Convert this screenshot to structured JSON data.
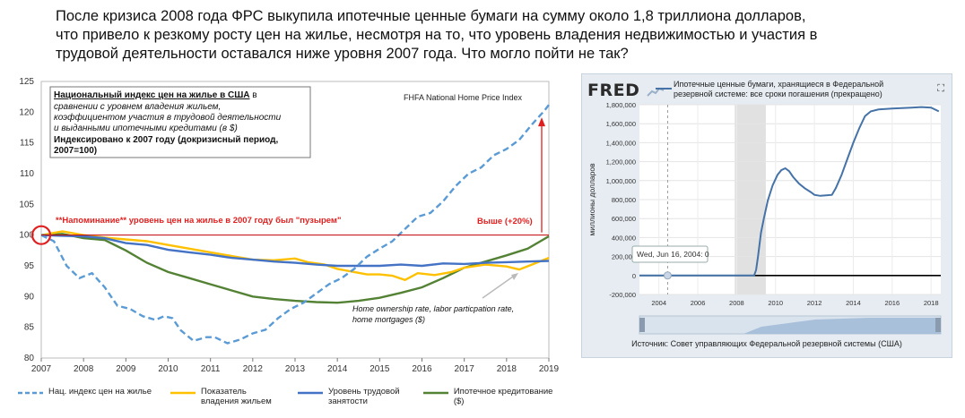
{
  "headline": {
    "line1": "После кризиса 2008 года ФРС выкупила ипотечные ценные бумаги на сумму около 1,8 триллиона долларов,",
    "line2": "что привело к резкому росту цен на жилье, несмотря на то, что уровень владения недвижимостью и участия в",
    "line3": "трудовой деятельности оставался ниже уровня 2007 года. Что могло пойти не так?"
  },
  "left_chart": {
    "box_title": "Национальный индекс цен на жилье в США",
    "box_title_suffix": " в",
    "box_line2": "сравнении с уровнем владения жильем,",
    "box_line3": "коэффициентом участия в трудовой деятельности",
    "box_line4": "и выданными ипотечными кредитами (в $)",
    "box_line5": "Индексировано к 2007 году (докризисный период,",
    "box_line6": "2007=100)",
    "source_label": "FHFA National Home Price Index",
    "reminder": "**Напоминание** уровень цен на жилье в 2007 году был \"пузырем\"",
    "higher_label": "Выше (+20%)",
    "annotation_line1": "Home ownership rate, labor particpation rate,",
    "annotation_line2": "home mortgages ($)",
    "colors": {
      "price": "#5b9bd5",
      "ownership": "#ffc000",
      "labor": "#4472c4",
      "mortgage": "#548235",
      "accent": "#e02020"
    }
  },
  "legend": [
    {
      "label1": "Нац. индекс цен на жилье",
      "label2": ""
    },
    {
      "label1": "Показатель",
      "label2": "владения жильем"
    },
    {
      "label1": "Уровень трудовой",
      "label2": "занятости"
    },
    {
      "label1": "Ипотечное кредитование ($)",
      "label2": ""
    }
  ],
  "fred": {
    "logo": "FRED",
    "series_title_line1": "Ипотечные ценные бумаги, хранящиеся в Федеральной",
    "series_title_line2": "резервной системе: все сроки погашения (прекращено)",
    "expand_icon": "⛶",
    "y_axis_label": "миллионы долларов",
    "tooltip": "Wed, Jun 16, 2004: 0",
    "source": "Источник: Совет управляющих Федеральной резервной системы (США)",
    "line_color": "#4572a7",
    "recession_color": "#e1e1e1"
  },
  "chart_data": [
    {
      "type": "line",
      "x_ticks": [
        "2007",
        "2008",
        "2009",
        "2010",
        "2011",
        "2012",
        "2013",
        "2014",
        "2015",
        "2016",
        "2017",
        "2018",
        "2019"
      ],
      "ylim": [
        80,
        125
      ],
      "y_ticks": [
        "80",
        "85",
        "90",
        "95",
        "100",
        "105",
        "110",
        "115",
        "120",
        "125"
      ],
      "reference_line": 100,
      "series": [
        {
          "name": "Нац. индекс цен на жилье",
          "style": "dashed",
          "points": [
            [
              2007,
              100
            ],
            [
              2007.3,
              99
            ],
            [
              2007.6,
              95
            ],
            [
              2007.9,
              93
            ],
            [
              2008.2,
              93.8
            ],
            [
              2008.5,
              91.5
            ],
            [
              2008.8,
              88.5
            ],
            [
              2009.1,
              88
            ],
            [
              2009.4,
              86.8
            ],
            [
              2009.7,
              86.2
            ],
            [
              2009.9,
              86.8
            ],
            [
              2010.1,
              86.5
            ],
            [
              2010.3,
              84.5
            ],
            [
              2010.6,
              82.8
            ],
            [
              2010.9,
              83.4
            ],
            [
              2011.1,
              83.4
            ],
            [
              2011.4,
              82.4
            ],
            [
              2011.7,
              83
            ],
            [
              2012.0,
              84
            ],
            [
              2012.3,
              84.6
            ],
            [
              2012.6,
              86.5
            ],
            [
              2012.9,
              88
            ],
            [
              2013.2,
              89
            ],
            [
              2013.5,
              90.5
            ],
            [
              2013.8,
              92
            ],
            [
              2014.1,
              93
            ],
            [
              2014.4,
              94.5
            ],
            [
              2014.7,
              96.5
            ],
            [
              2015.0,
              97.8
            ],
            [
              2015.3,
              99
            ],
            [
              2015.6,
              101
            ],
            [
              2015.9,
              103
            ],
            [
              2016.2,
              103.6
            ],
            [
              2016.5,
              105.5
            ],
            [
              2016.8,
              108
            ],
            [
              2017.1,
              110
            ],
            [
              2017.4,
              111
            ],
            [
              2017.7,
              113
            ],
            [
              2018.0,
              114
            ],
            [
              2018.3,
              115.5
            ],
            [
              2018.6,
              118
            ],
            [
              2018.9,
              120.3
            ],
            [
              2019.0,
              121.2
            ]
          ]
        },
        {
          "name": "Показатель владения жильем",
          "style": "solid",
          "points": [
            [
              2007,
              100
            ],
            [
              2007.5,
              100.6
            ],
            [
              2008,
              100
            ],
            [
              2008.5,
              99.6
            ],
            [
              2009,
              99.3
            ],
            [
              2009.5,
              99
            ],
            [
              2010,
              98.4
            ],
            [
              2010.5,
              97.8
            ],
            [
              2011,
              97.2
            ],
            [
              2011.5,
              96.6
            ],
            [
              2012,
              96
            ],
            [
              2012.5,
              95.9
            ],
            [
              2013,
              96.2
            ],
            [
              2013.3,
              95.6
            ],
            [
              2013.7,
              95.2
            ],
            [
              2014,
              94.5
            ],
            [
              2014.4,
              94
            ],
            [
              2014.7,
              93.6
            ],
            [
              2015.0,
              93.6
            ],
            [
              2015.3,
              93.4
            ],
            [
              2015.6,
              92.7
            ],
            [
              2015.9,
              93.8
            ],
            [
              2016.3,
              93.5
            ],
            [
              2016.7,
              94
            ],
            [
              2017,
              94.7
            ],
            [
              2017.5,
              95.2
            ],
            [
              2018,
              94.9
            ],
            [
              2018.3,
              94.4
            ],
            [
              2018.6,
              95.2
            ],
            [
              2019,
              96.3
            ]
          ]
        },
        {
          "name": "Уровень трудовой занятости",
          "style": "solid",
          "points": [
            [
              2007,
              100
            ],
            [
              2007.5,
              99.9
            ],
            [
              2008,
              99.8
            ],
            [
              2008.5,
              99.5
            ],
            [
              2009,
              98.7
            ],
            [
              2009.5,
              98.4
            ],
            [
              2010,
              97.6
            ],
            [
              2010.5,
              97.2
            ],
            [
              2011,
              96.8
            ],
            [
              2011.5,
              96.3
            ],
            [
              2012,
              96
            ],
            [
              2012.5,
              95.7
            ],
            [
              2013,
              95.5
            ],
            [
              2013.5,
              95.2
            ],
            [
              2014,
              95
            ],
            [
              2014.5,
              95
            ],
            [
              2015,
              95
            ],
            [
              2015.5,
              95.2
            ],
            [
              2016,
              95
            ],
            [
              2016.5,
              95.4
            ],
            [
              2017,
              95.3
            ],
            [
              2017.5,
              95.5
            ],
            [
              2018,
              95.6
            ],
            [
              2018.5,
              95.7
            ],
            [
              2019,
              95.8
            ]
          ]
        },
        {
          "name": "Ипотечное кредитование ($)",
          "style": "solid",
          "points": [
            [
              2007,
              100
            ],
            [
              2007.5,
              100.2
            ],
            [
              2008,
              99.5
            ],
            [
              2008.5,
              99.2
            ],
            [
              2009,
              97.5
            ],
            [
              2009.5,
              95.5
            ],
            [
              2010,
              94
            ],
            [
              2010.5,
              93
            ],
            [
              2011,
              92
            ],
            [
              2011.5,
              91
            ],
            [
              2012,
              90
            ],
            [
              2012.5,
              89.6
            ],
            [
              2013,
              89.3
            ],
            [
              2013.5,
              89.1
            ],
            [
              2014,
              89
            ],
            [
              2014.5,
              89.3
            ],
            [
              2015,
              89.8
            ],
            [
              2015.5,
              90.6
            ],
            [
              2016,
              91.5
            ],
            [
              2016.5,
              93
            ],
            [
              2017,
              94.7
            ],
            [
              2017.5,
              95.7
            ],
            [
              2018,
              96.7
            ],
            [
              2018.5,
              97.8
            ],
            [
              2019,
              99.8
            ]
          ]
        }
      ]
    },
    {
      "type": "line",
      "x_ticks": [
        "2004",
        "2006",
        "2008",
        "2010",
        "2012",
        "2014",
        "2016",
        "2018"
      ],
      "ylim": [
        -200000,
        1800000
      ],
      "y_ticks": [
        "-200,000",
        "0",
        "200,000",
        "400,000",
        "600,000",
        "800,000",
        "1,000,000",
        "1,200,000",
        "1,400,000",
        "1,600,000",
        "1,800,000"
      ],
      "ylabel": "миллионы долларов",
      "recession": [
        2007.9,
        2009.5
      ],
      "series": [
        {
          "name": "Ипотечные ценные бумаги, хранящиеся в Федеральной резервной системе: все сроки погашения (прекращено)",
          "points": [
            [
              2003,
              0
            ],
            [
              2008.9,
              0
            ],
            [
              2009.0,
              60000
            ],
            [
              2009.1,
              200000
            ],
            [
              2009.25,
              450000
            ],
            [
              2009.4,
              600000
            ],
            [
              2009.6,
              790000
            ],
            [
              2009.85,
              950000
            ],
            [
              2010.1,
              1060000
            ],
            [
              2010.3,
              1110000
            ],
            [
              2010.5,
              1130000
            ],
            [
              2010.7,
              1100000
            ],
            [
              2010.9,
              1040000
            ],
            [
              2011.2,
              970000
            ],
            [
              2011.5,
              920000
            ],
            [
              2011.8,
              880000
            ],
            [
              2012.0,
              850000
            ],
            [
              2012.3,
              840000
            ],
            [
              2012.6,
              845000
            ],
            [
              2012.9,
              850000
            ],
            [
              2013.1,
              920000
            ],
            [
              2013.4,
              1060000
            ],
            [
              2013.7,
              1230000
            ],
            [
              2014.0,
              1400000
            ],
            [
              2014.3,
              1550000
            ],
            [
              2014.6,
              1680000
            ],
            [
              2014.9,
              1730000
            ],
            [
              2015.3,
              1750000
            ],
            [
              2016,
              1760000
            ],
            [
              2016.5,
              1765000
            ],
            [
              2017,
              1770000
            ],
            [
              2017.5,
              1775000
            ],
            [
              2018,
              1770000
            ],
            [
              2018.3,
              1740000
            ],
            [
              2018.4,
              1730000
            ]
          ]
        }
      ]
    }
  ]
}
